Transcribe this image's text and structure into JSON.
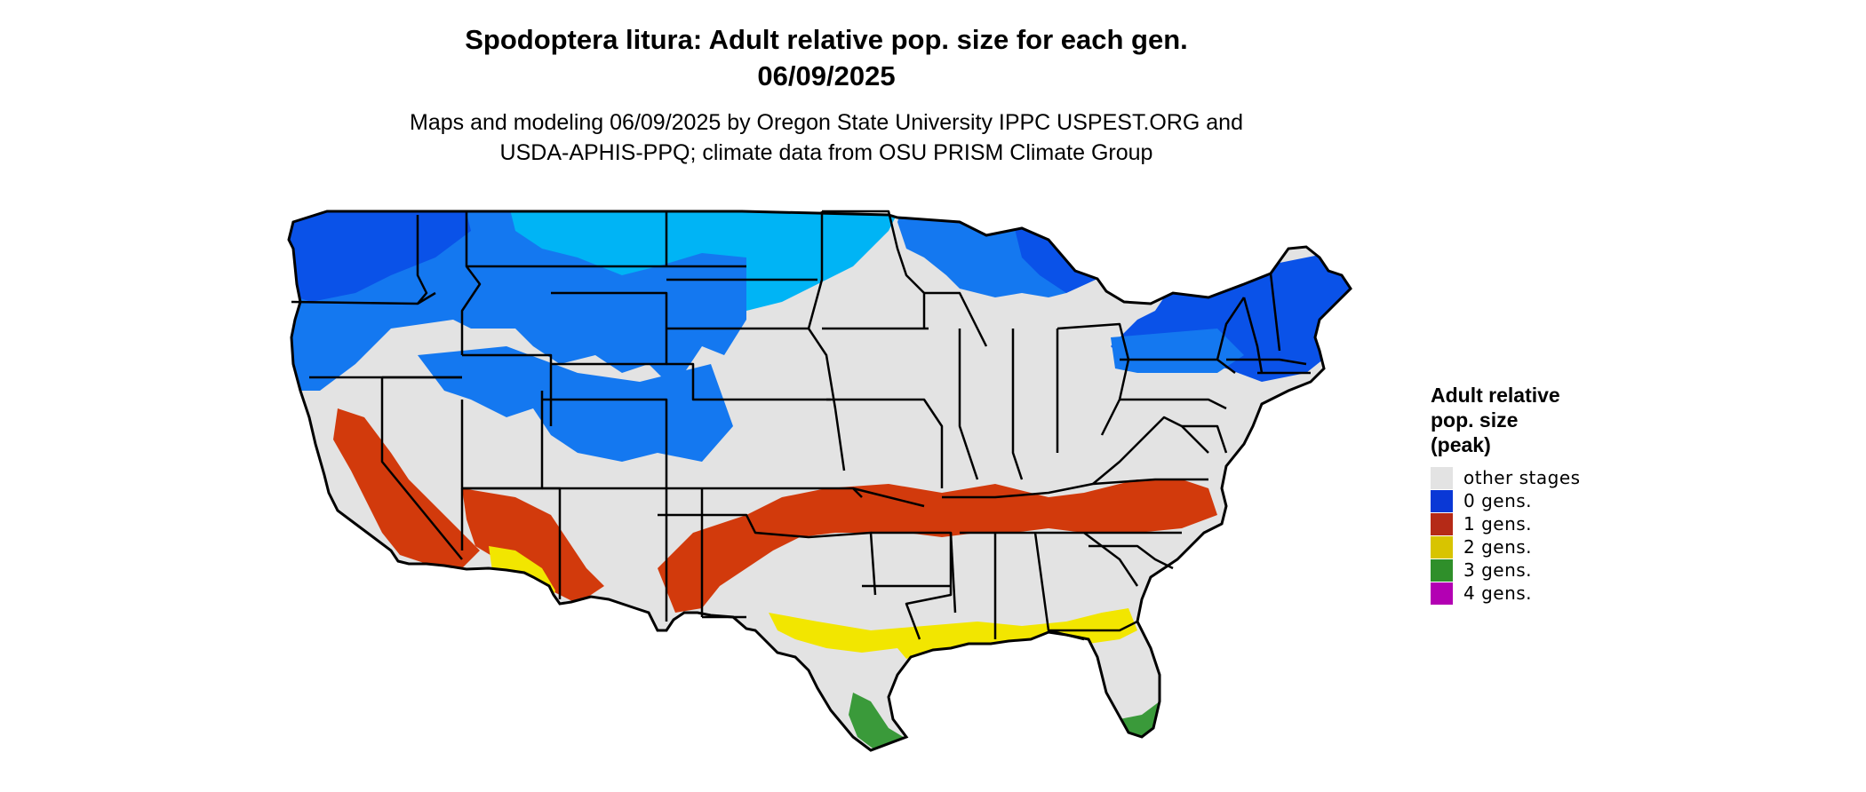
{
  "header": {
    "title_line1": "Spodoptera litura: Adult relative pop. size for each gen.",
    "title_line2": "06/09/2025",
    "subtitle_line1": "Maps and modeling 06/09/2025 by Oregon State University IPPC USPEST.ORG and",
    "subtitle_line2": "USDA-APHIS-PPQ; climate data from OSU PRISM Climate Group"
  },
  "legend": {
    "title_line1": "Adult relative",
    "title_line2": "pop. size",
    "title_line3": "(peak)",
    "items": [
      {
        "label": "other stages",
        "color": "#e3e3e3"
      },
      {
        "label": "0 gens.",
        "color": "#0a38d6"
      },
      {
        "label": "1 gens.",
        "color": "#b52a17"
      },
      {
        "label": "2 gens.",
        "color": "#d8c400"
      },
      {
        "label": "3 gens.",
        "color": "#2f8f2a"
      },
      {
        "label": "4 gens.",
        "color": "#b300b3"
      }
    ]
  },
  "map_colors": {
    "base": "#e3e3e3",
    "blue_dark": "#0a52e8",
    "blue_mid": "#1478f0",
    "blue_light": "#00b4f5",
    "red": "#d23a0c",
    "yellow": "#f2e600",
    "green": "#3a9a3a",
    "border": "#000000"
  }
}
